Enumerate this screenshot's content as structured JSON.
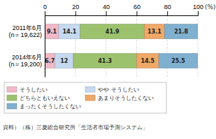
{
  "chart_data": {
    "type": "bar",
    "orientation": "horizontal",
    "stacked": true,
    "categories": [
      "2011年6月\n(n＝19,622)",
      "2014年6月\n(n＝19,200)"
    ],
    "series": [
      {
        "name": "そうしたい",
        "color": "#f2b8c6",
        "values": [
          9.1,
          6.7
        ]
      },
      {
        "name": "やや そうしたい",
        "color": "#c5d9f0",
        "values": [
          14.1,
          12.0
        ]
      },
      {
        "name": "どちらともいえない",
        "color": "#9cc26e",
        "values": [
          41.9,
          41.3
        ]
      },
      {
        "name": "あまりそうしたくない",
        "color": "#f0a868",
        "values": [
          13.1,
          14.5
        ]
      },
      {
        "name": "まったくそうしたくない",
        "color": "#80b0d0",
        "values": [
          21.8,
          25.5
        ]
      }
    ],
    "xlim": [
      0,
      100
    ],
    "xticks": [
      0,
      20,
      40,
      60,
      80,
      100
    ],
    "xlabel": "(%)",
    "annotations": [
      "資料）（株）三菱総合研究所「生活者市場予測システム」"
    ],
    "grid": true,
    "legend": "bottom",
    "data_labels": true
  }
}
